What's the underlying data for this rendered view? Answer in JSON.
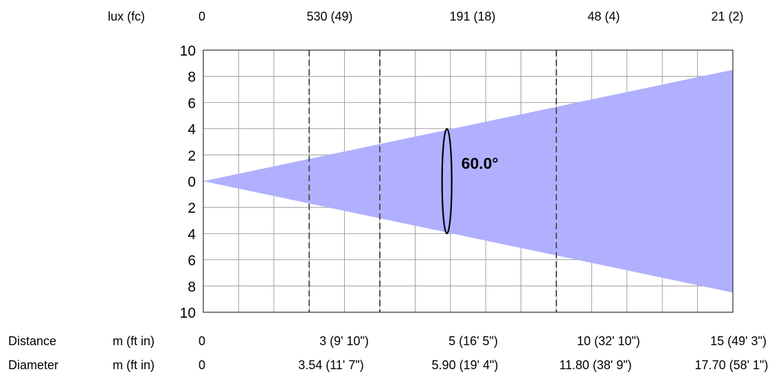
{
  "chart_data": {
    "type": "area",
    "title": "",
    "beam_angle_label": "60.0°",
    "beam_color": "#b0b0ff",
    "grid": true,
    "x_range_m": [
      0,
      15
    ],
    "y_range": [
      -10,
      10
    ],
    "y_tick_labels": [
      "10",
      "8",
      "6",
      "4",
      "2",
      "0",
      "2",
      "4",
      "6",
      "8",
      "10"
    ],
    "beam_half_height_at": {
      "x": 15,
      "y": 8.5
    },
    "ellipse_at_distance": 6.9,
    "ellipse_half_height": 4,
    "dashed_marker_distances": [
      3,
      5,
      10
    ],
    "lux_row": {
      "header": "lux (fc)",
      "values": [
        "0",
        "530 (49)",
        "191 (18)",
        "48 (4)",
        "21 (2)"
      ]
    },
    "distance_row": {
      "header": "Distance",
      "unit": "m (ft in)",
      "values": [
        "0",
        "3 (9' 10\")",
        "5 (16' 5\")",
        "10 (32' 10\")",
        "15 (49' 3\")"
      ]
    },
    "diameter_row": {
      "header": "Diameter",
      "unit": "m (ft in)",
      "values": [
        "0",
        "3.54 (11' 7\")",
        "5.90 (19' 4\")",
        "11.80 (38' 9\")",
        "17.70 (58' 1\")"
      ]
    }
  }
}
